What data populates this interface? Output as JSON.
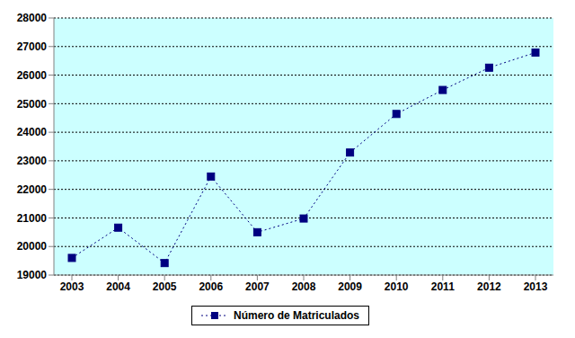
{
  "chart_data": {
    "type": "line",
    "categories": [
      "2003",
      "2004",
      "2005",
      "2006",
      "2007",
      "2008",
      "2009",
      "2010",
      "2011",
      "2012",
      "2013"
    ],
    "series": [
      {
        "name": "Número de Matriculados",
        "color": "#000080",
        "marker": "square",
        "line_style": "dotted",
        "values": [
          19600,
          20660,
          19420,
          22450,
          20500,
          20980,
          23290,
          24640,
          25480,
          26260,
          26790
        ]
      }
    ],
    "ylim": [
      19000,
      28000
    ],
    "yticks": [
      19000,
      20000,
      21000,
      22000,
      23000,
      24000,
      25000,
      26000,
      27000,
      28000
    ],
    "grid": true,
    "legend": "bottom"
  }
}
